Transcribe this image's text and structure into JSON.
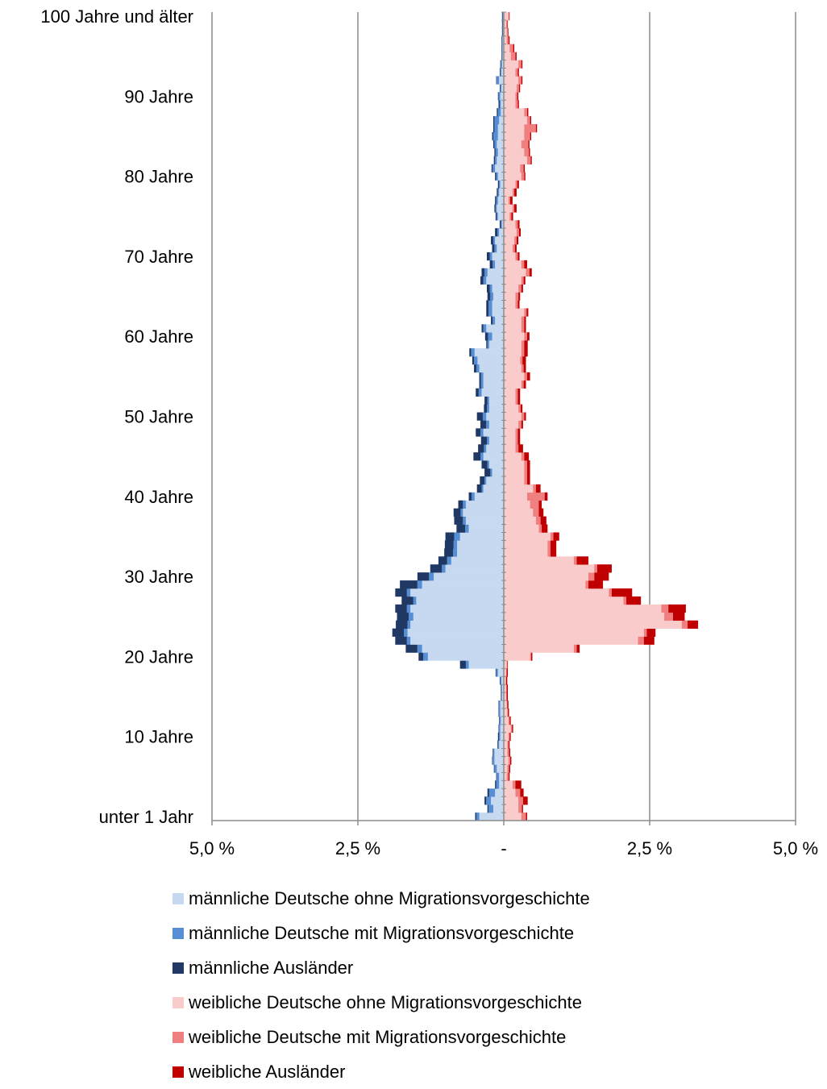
{
  "chart_data": {
    "type": "bar",
    "orientation": "horizontal",
    "stacked": true,
    "x_axis": {
      "ticks": [
        "5,0 %",
        "2,5 %",
        "-",
        "2,5 %",
        "5,0 %"
      ],
      "range_percent": [
        -5,
        5
      ]
    },
    "y_axis": {
      "ages": [
        0,
        1,
        2,
        3,
        4,
        5,
        6,
        7,
        8,
        9,
        10,
        11,
        12,
        13,
        14,
        15,
        16,
        17,
        18,
        19,
        20,
        21,
        22,
        23,
        24,
        25,
        26,
        27,
        28,
        29,
        30,
        31,
        32,
        33,
        34,
        35,
        36,
        37,
        38,
        39,
        40,
        41,
        42,
        43,
        44,
        45,
        46,
        47,
        48,
        49,
        50,
        51,
        52,
        53,
        54,
        55,
        56,
        57,
        58,
        59,
        60,
        61,
        62,
        63,
        64,
        65,
        66,
        67,
        68,
        69,
        70,
        71,
        72,
        73,
        74,
        75,
        76,
        77,
        78,
        79,
        80,
        81,
        82,
        83,
        84,
        85,
        86,
        87,
        88,
        89,
        90,
        91,
        92,
        93,
        94,
        95,
        96,
        97,
        98,
        99,
        100
      ],
      "tick_labels": [
        {
          "age": 0,
          "label": "unter 1 Jahr"
        },
        {
          "age": 10,
          "label": "10 Jahre"
        },
        {
          "age": 20,
          "label": "20 Jahre"
        },
        {
          "age": 30,
          "label": "30 Jahre"
        },
        {
          "age": 40,
          "label": "40 Jahre"
        },
        {
          "age": 50,
          "label": "50 Jahre"
        },
        {
          "age": 60,
          "label": "60 Jahre"
        },
        {
          "age": 70,
          "label": "70 Jahre"
        },
        {
          "age": 80,
          "label": "80 Jahre"
        },
        {
          "age": 90,
          "label": "90 Jahre"
        },
        {
          "age": 100,
          "label": "100 Jahre und älter"
        }
      ]
    },
    "series": [
      {
        "name": "männliche Deutsche ohne Migrationsvorgeschichte",
        "side": "male",
        "color": "#c6d9f0",
        "values": [
          0.42,
          0.18,
          0.22,
          0.15,
          0.08,
          0.08,
          0.12,
          0.16,
          0.16,
          0.08,
          0.06,
          0.06,
          0.05,
          0.06,
          0.06,
          0.03,
          0.03,
          0.04,
          0.1,
          0.6,
          1.3,
          1.4,
          1.6,
          1.65,
          1.6,
          1.55,
          1.6,
          1.5,
          1.6,
          1.4,
          1.2,
          1.0,
          0.9,
          0.8,
          0.8,
          0.75,
          0.6,
          0.65,
          0.7,
          0.65,
          0.5,
          0.35,
          0.3,
          0.2,
          0.25,
          0.35,
          0.3,
          0.25,
          0.35,
          0.25,
          0.3,
          0.25,
          0.25,
          0.38,
          0.35,
          0.35,
          0.42,
          0.45,
          0.5,
          0.25,
          0.2,
          0.3,
          0.15,
          0.2,
          0.2,
          0.18,
          0.2,
          0.3,
          0.28,
          0.15,
          0.2,
          0.12,
          0.15,
          0.08,
          0.03,
          0.1,
          0.12,
          0.1,
          0.08,
          0.06,
          0.1,
          0.15,
          0.12,
          0.1,
          0.12,
          0.1,
          0.1,
          0.08,
          0.05,
          0.05,
          0.06,
          0.04,
          0.08,
          0.04,
          0.03,
          0.02,
          0.02,
          0.02,
          0.01,
          0.01,
          0.01
        ]
      },
      {
        "name": "männliche Deutsche mit Migrationsvorgeschichte",
        "side": "male",
        "color": "#558ed5",
        "values": [
          0.05,
          0.08,
          0.08,
          0.1,
          0.05,
          0.04,
          0.04,
          0.03,
          0.02,
          0.02,
          0.02,
          0.02,
          0.02,
          0.02,
          0.02,
          0.01,
          0.01,
          0.02,
          0.03,
          0.05,
          0.08,
          0.08,
          0.06,
          0.06,
          0.05,
          0.08,
          0.06,
          0.05,
          0.06,
          0.08,
          0.08,
          0.06,
          0.07,
          0.07,
          0.06,
          0.1,
          0.06,
          0.05,
          0.04,
          0.05,
          0.05,
          0.03,
          0.03,
          0.03,
          0.03,
          0.05,
          0.04,
          0.04,
          0.05,
          0.05,
          0.06,
          0.04,
          0.03,
          0.05,
          0.04,
          0.04,
          0.05,
          0.06,
          0.06,
          0.03,
          0.07,
          0.05,
          0.04,
          0.06,
          0.06,
          0.05,
          0.04,
          0.05,
          0.05,
          0.04,
          0.04,
          0.04,
          0.03,
          0.03,
          0.02,
          0.02,
          0.02,
          0.03,
          0.02,
          0.02,
          0.03,
          0.04,
          0.03,
          0.04,
          0.04,
          0.08,
          0.06,
          0.08,
          0.05,
          0.02,
          0.03,
          0.02,
          0.04,
          0.02,
          0.02,
          0.01,
          0.01,
          0.01,
          0.01,
          0.01,
          0.01
        ]
      },
      {
        "name": "männliche Ausländer",
        "side": "male",
        "color": "#1f3864",
        "values": [
          0.02,
          0.02,
          0.03,
          0.03,
          0.02,
          0.01,
          0.01,
          0.01,
          0.01,
          0.01,
          0.02,
          0.01,
          0.01,
          0.01,
          0.01,
          0.01,
          0.01,
          0.01,
          0.01,
          0.1,
          0.08,
          0.2,
          0.2,
          0.2,
          0.2,
          0.2,
          0.2,
          0.2,
          0.2,
          0.3,
          0.2,
          0.2,
          0.15,
          0.15,
          0.15,
          0.15,
          0.15,
          0.15,
          0.12,
          0.08,
          0.05,
          0.08,
          0.08,
          0.1,
          0.1,
          0.12,
          0.1,
          0.1,
          0.08,
          0.1,
          0.1,
          0.05,
          0.05,
          0.05,
          0.03,
          0.03,
          0.04,
          0.03,
          0.03,
          0.02,
          0.05,
          0.03,
          0.03,
          0.04,
          0.04,
          0.05,
          0.05,
          0.05,
          0.05,
          0.05,
          0.05,
          0.04,
          0.04,
          0.04,
          0.02,
          0.02,
          0.02,
          0.02,
          0.02,
          0.02,
          0.02,
          0.02,
          0.02,
          0.02,
          0.02,
          0.02,
          0.02,
          0.02,
          0.02,
          0.02,
          0.01,
          0.01,
          0.01,
          0.01,
          0.01,
          0.01,
          0.01,
          0.01,
          0.01,
          0.01,
          0.01
        ]
      },
      {
        "name": "weibliche Deutsche ohne Migrationsvorgeschichte",
        "side": "female",
        "color": "#f9cbcb",
        "values": [
          0.3,
          0.25,
          0.25,
          0.2,
          0.15,
          0.05,
          0.06,
          0.08,
          0.06,
          0.06,
          0.08,
          0.12,
          0.08,
          0.06,
          0.05,
          0.04,
          0.04,
          0.03,
          0.04,
          0.05,
          0.45,
          1.2,
          2.3,
          2.4,
          3.05,
          2.75,
          2.7,
          2.05,
          1.8,
          1.4,
          1.45,
          1.55,
          1.2,
          0.75,
          0.75,
          0.8,
          0.6,
          0.55,
          0.5,
          0.45,
          0.4,
          0.5,
          0.35,
          0.35,
          0.35,
          0.3,
          0.2,
          0.2,
          0.2,
          0.25,
          0.3,
          0.25,
          0.2,
          0.2,
          0.3,
          0.35,
          0.3,
          0.28,
          0.3,
          0.3,
          0.35,
          0.3,
          0.3,
          0.35,
          0.2,
          0.2,
          0.25,
          0.3,
          0.38,
          0.3,
          0.2,
          0.15,
          0.18,
          0.22,
          0.2,
          0.1,
          0.15,
          0.08,
          0.15,
          0.2,
          0.3,
          0.28,
          0.4,
          0.35,
          0.3,
          0.35,
          0.35,
          0.4,
          0.35,
          0.2,
          0.2,
          0.22,
          0.25,
          0.2,
          0.25,
          0.12,
          0.1,
          0.05,
          0.05,
          0.04,
          0.08
        ]
      },
      {
        "name": "weibliche Deutsche mit Migrationsvorgeschichte",
        "side": "female",
        "color": "#f08080",
        "values": [
          0.08,
          0.06,
          0.08,
          0.08,
          0.05,
          0.03,
          0.03,
          0.03,
          0.03,
          0.02,
          0.02,
          0.02,
          0.02,
          0.01,
          0.01,
          0.01,
          0.01,
          0.01,
          0.01,
          0.01,
          0.02,
          0.05,
          0.1,
          0.05,
          0.1,
          0.15,
          0.12,
          0.05,
          0.05,
          0.05,
          0.1,
          0.05,
          0.05,
          0.05,
          0.05,
          0.05,
          0.05,
          0.08,
          0.1,
          0.15,
          0.3,
          0.05,
          0.05,
          0.05,
          0.05,
          0.05,
          0.05,
          0.04,
          0.04,
          0.05,
          0.05,
          0.04,
          0.04,
          0.04,
          0.04,
          0.05,
          0.04,
          0.04,
          0.05,
          0.05,
          0.05,
          0.05,
          0.05,
          0.04,
          0.04,
          0.05,
          0.05,
          0.04,
          0.06,
          0.05,
          0.04,
          0.04,
          0.04,
          0.04,
          0.04,
          0.03,
          0.03,
          0.03,
          0.03,
          0.03,
          0.05,
          0.06,
          0.06,
          0.08,
          0.12,
          0.1,
          0.2,
          0.05,
          0.05,
          0.04,
          0.03,
          0.04,
          0.05,
          0.04,
          0.05,
          0.08,
          0.06,
          0.03,
          0.02,
          0.02,
          0.01
        ]
      },
      {
        "name": "weibliche Ausländer",
        "side": "female",
        "color": "#c00000",
        "values": [
          0.02,
          0.02,
          0.08,
          0.06,
          0.1,
          0.02,
          0.02,
          0.02,
          0.02,
          0.02,
          0.02,
          0.02,
          0.02,
          0.02,
          0.02,
          0.02,
          0.02,
          0.02,
          0.02,
          0.01,
          0.02,
          0.05,
          0.18,
          0.15,
          0.18,
          0.2,
          0.3,
          0.25,
          0.35,
          0.25,
          0.25,
          0.25,
          0.2,
          0.1,
          0.1,
          0.1,
          0.1,
          0.1,
          0.08,
          0.05,
          0.05,
          0.08,
          0.05,
          0.05,
          0.05,
          0.08,
          0.08,
          0.04,
          0.04,
          0.03,
          0.03,
          0.03,
          0.04,
          0.04,
          0.04,
          0.05,
          0.04,
          0.06,
          0.06,
          0.06,
          0.04,
          0.03,
          0.03,
          0.03,
          0.03,
          0.03,
          0.03,
          0.03,
          0.04,
          0.05,
          0.03,
          0.03,
          0.03,
          0.03,
          0.03,
          0.03,
          0.04,
          0.04,
          0.04,
          0.03,
          0.02,
          0.02,
          0.02,
          0.02,
          0.02,
          0.02,
          0.02,
          0.02,
          0.02,
          0.02,
          0.02,
          0.02,
          0.02,
          0.02,
          0.02,
          0.02,
          0.02,
          0.02,
          0.01,
          0.01,
          0.01
        ]
      }
    ],
    "grid": true,
    "legend_position": "bottom"
  }
}
